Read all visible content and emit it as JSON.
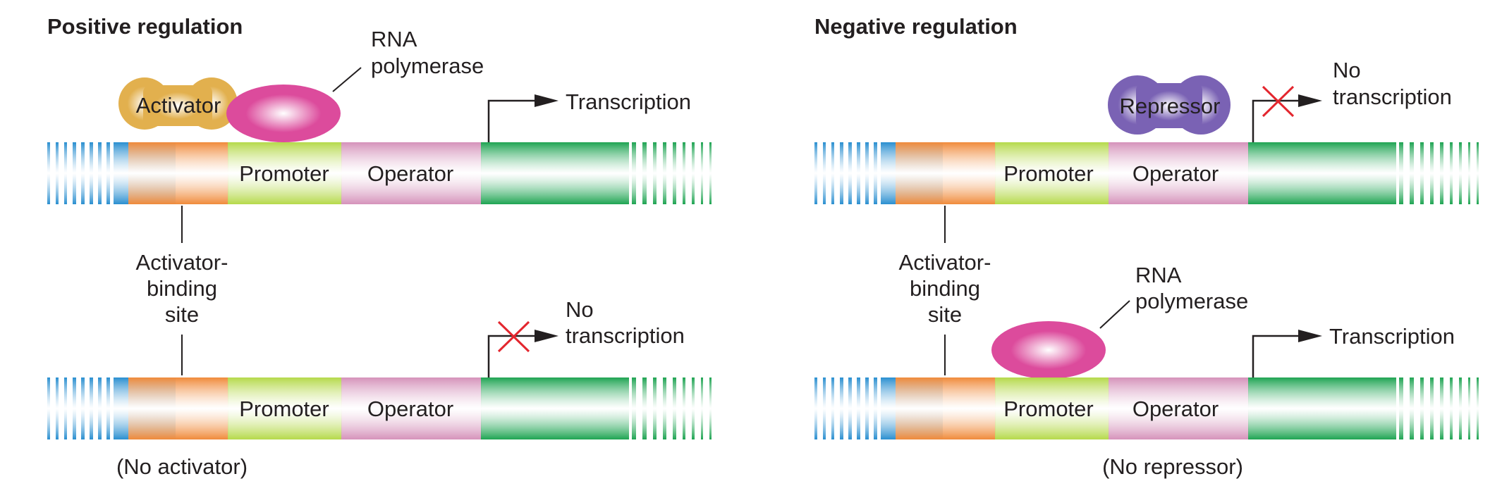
{
  "colors": {
    "blue": "#2a8fd0",
    "orange": "#f08a3a",
    "lime": "#b5d94a",
    "mauve": "#d592ba",
    "green": "#1ea452",
    "activator": "#e2b04e",
    "repressor": "#7a62b4",
    "polymerase": "#dc4b9c",
    "cross": "#e3262e"
  },
  "positive": {
    "title": "Positive regulation",
    "top": {
      "activator_label": "Activator",
      "polymerase_label": [
        "RNA",
        "polymerase"
      ],
      "promoter_label": "Promoter",
      "operator_label": "Operator",
      "result": [
        "Transcription"
      ]
    },
    "site_label": [
      "Activator-",
      "binding",
      "site"
    ],
    "bottom": {
      "promoter_label": "Promoter",
      "operator_label": "Operator",
      "result": [
        "No",
        "transcription"
      ],
      "caption": "(No activator)"
    }
  },
  "negative": {
    "title": "Negative regulation",
    "top": {
      "repressor_label": "Repressor",
      "promoter_label": "Promoter",
      "operator_label": "Operator",
      "result": [
        "No",
        "transcription"
      ]
    },
    "site_label": [
      "Activator-",
      "binding",
      "site"
    ],
    "bottom": {
      "polymerase_label": [
        "RNA",
        "polymerase"
      ],
      "promoter_label": "Promoter",
      "operator_label": "Operator",
      "result": [
        "Transcription"
      ],
      "caption": "(No repressor)"
    }
  }
}
